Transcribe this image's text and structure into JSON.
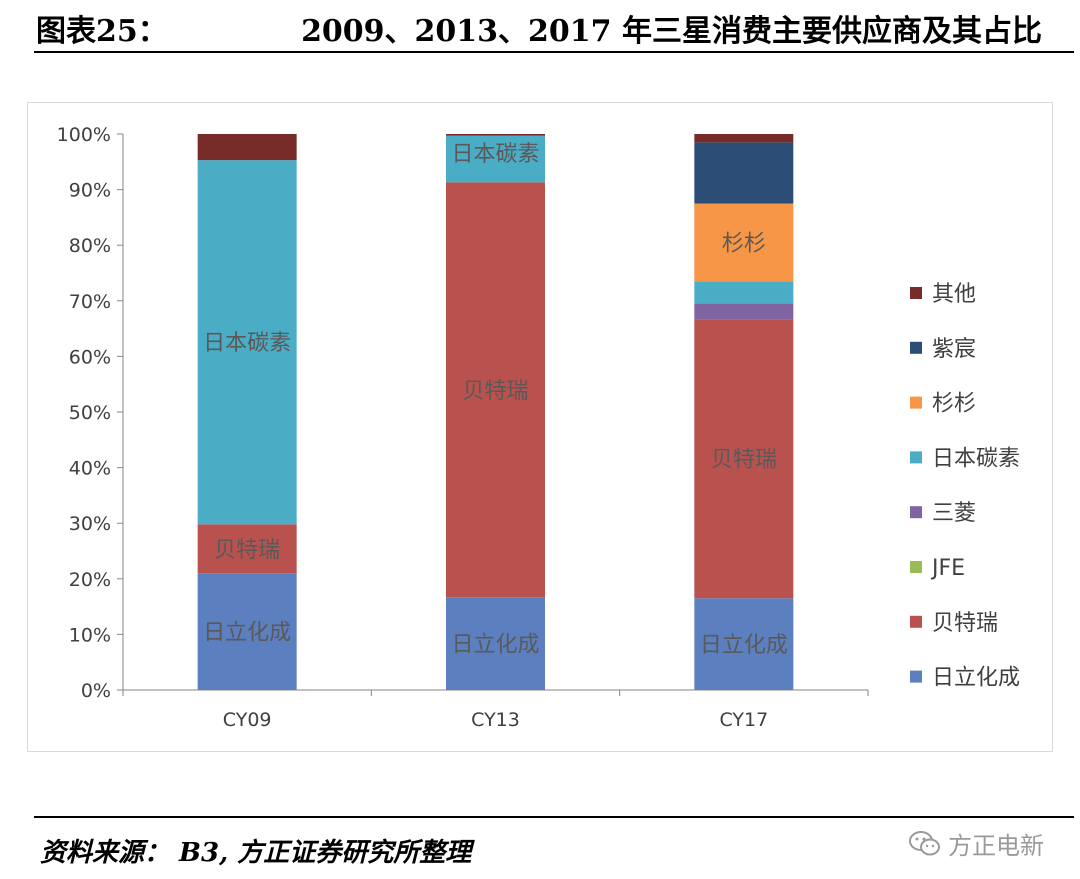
{
  "header": {
    "figure_label": "图表25：",
    "title": "2009、2013、2017 年三星消费主要供应商及其占比"
  },
  "footer": {
    "source": "资料来源： B3, 方正证券研究所整理",
    "watermark": "方正电新"
  },
  "chart_data": {
    "type": "bar",
    "stacked": true,
    "categories": [
      "CY09",
      "CY13",
      "CY17"
    ],
    "y_ticks": [
      "0%",
      "10%",
      "20%",
      "30%",
      "40%",
      "50%",
      "60%",
      "70%",
      "80%",
      "90%",
      "100%"
    ],
    "ylim": [
      0,
      100
    ],
    "grid": false,
    "legend_position": "right",
    "series": [
      {
        "name": "日立化成",
        "color": "#5b7fbf",
        "values": [
          21,
          16.7,
          16.5
        ]
      },
      {
        "name": "贝特瑞",
        "color": "#b9524f",
        "values": [
          8.8,
          74.6,
          50.2
        ]
      },
      {
        "name": "JFE",
        "color": "#9bbb59",
        "values": [
          0,
          0,
          0
        ]
      },
      {
        "name": "三菱",
        "color": "#8064a2",
        "values": [
          0,
          0,
          2.8
        ]
      },
      {
        "name": "日本碳素",
        "color": "#4bacc6",
        "values": [
          65.5,
          8.4,
          4.0
        ]
      },
      {
        "name": "杉杉",
        "color": "#f79646",
        "values": [
          0,
          0,
          14.0
        ]
      },
      {
        "name": "紫宸",
        "color": "#2c4d75",
        "values": [
          0,
          0,
          11.0
        ]
      },
      {
        "name": "其他",
        "color": "#772c2a",
        "values": [
          4.7,
          0.3,
          1.5
        ]
      }
    ],
    "segment_labels": [
      {
        "category": "CY09",
        "series": "日立化成",
        "text": "日立化成"
      },
      {
        "category": "CY09",
        "series": "贝特瑞",
        "text": "贝特瑞"
      },
      {
        "category": "CY09",
        "series": "日本碳素",
        "text": "日本碳素"
      },
      {
        "category": "CY13",
        "series": "日立化成",
        "text": "日立化成"
      },
      {
        "category": "CY13",
        "series": "贝特瑞",
        "text": "贝特瑞"
      },
      {
        "category": "CY13",
        "series": "日本碳素",
        "text": "日本碳素"
      },
      {
        "category": "CY17",
        "series": "日立化成",
        "text": "日立化成"
      },
      {
        "category": "CY17",
        "series": "贝特瑞",
        "text": "贝特瑞"
      },
      {
        "category": "CY17",
        "series": "杉杉",
        "text": "杉杉"
      }
    ]
  }
}
